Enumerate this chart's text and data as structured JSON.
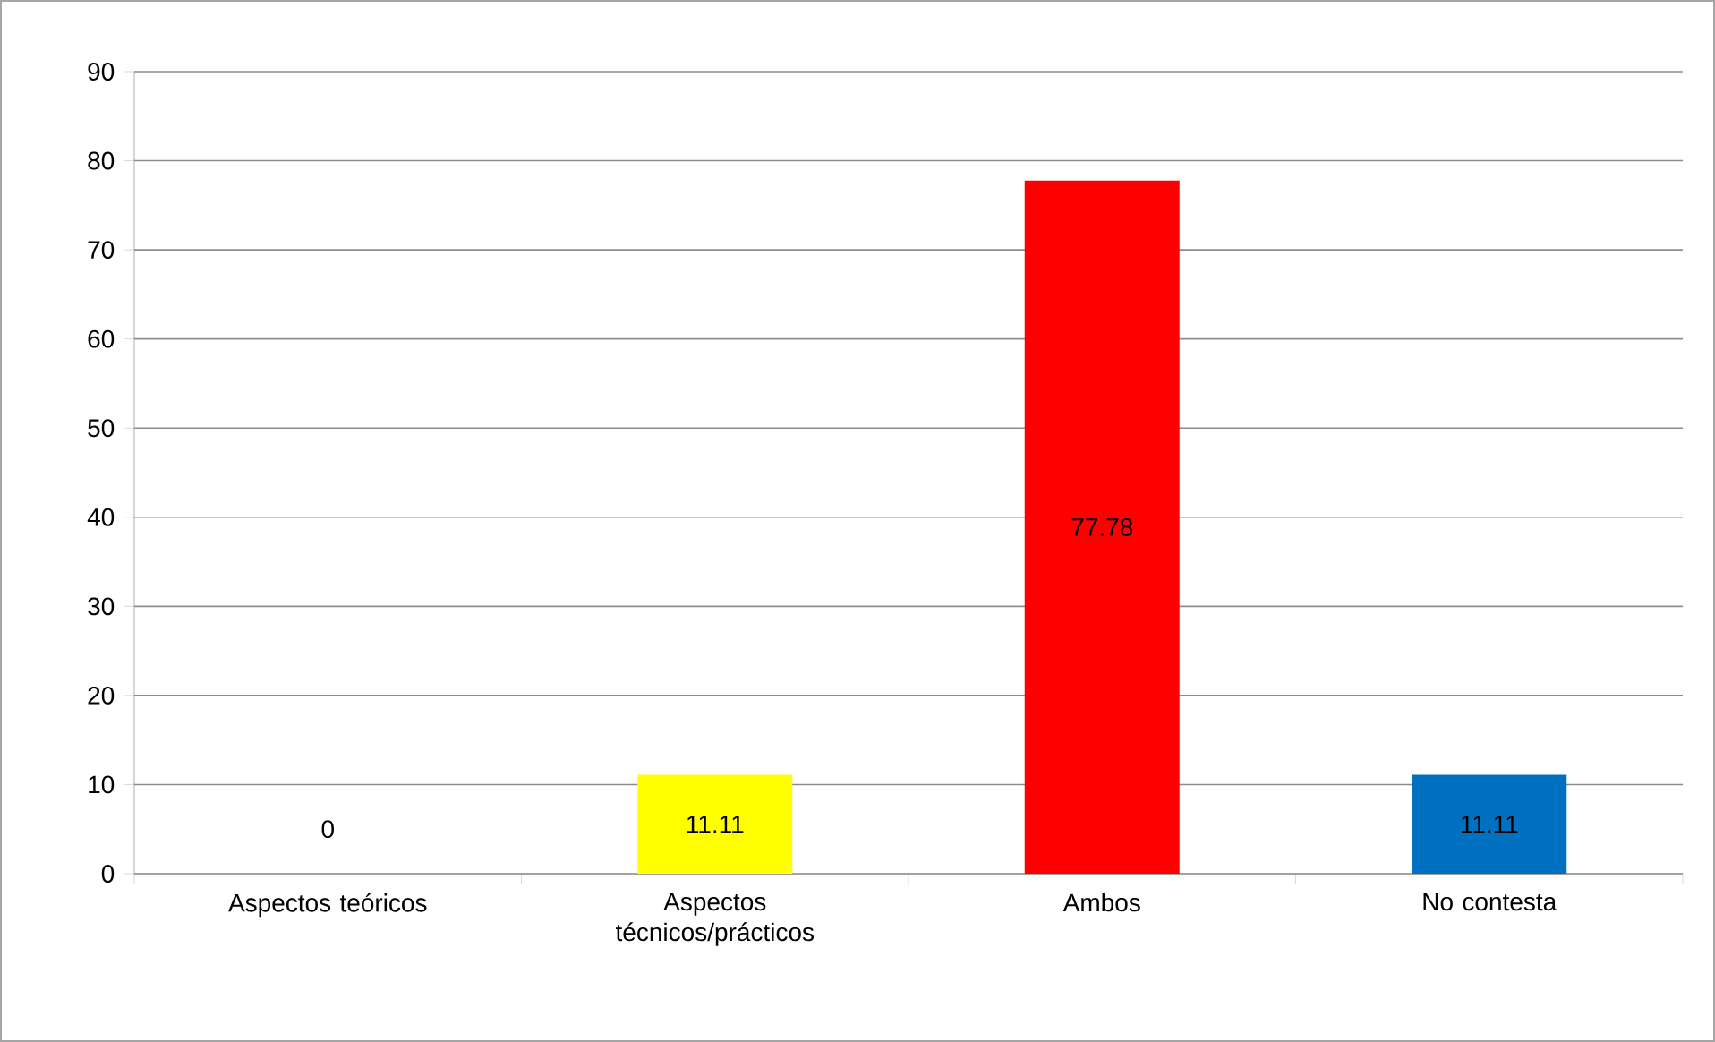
{
  "chart_data": {
    "type": "bar",
    "categories": [
      "Aspectos teóricos",
      "Aspectos técnicos/prácticos",
      "Ambos",
      "No contesta"
    ],
    "values": [
      0,
      11.11,
      77.78,
      11.11
    ],
    "colors": [
      "#ffff00",
      "#ffff00",
      "#ff0000",
      "#0070c0"
    ],
    "ylim": [
      0,
      90
    ],
    "yticks": [
      0,
      10,
      20,
      30,
      40,
      50,
      60,
      70,
      80,
      90
    ],
    "grid": "y",
    "data_labels": true
  }
}
